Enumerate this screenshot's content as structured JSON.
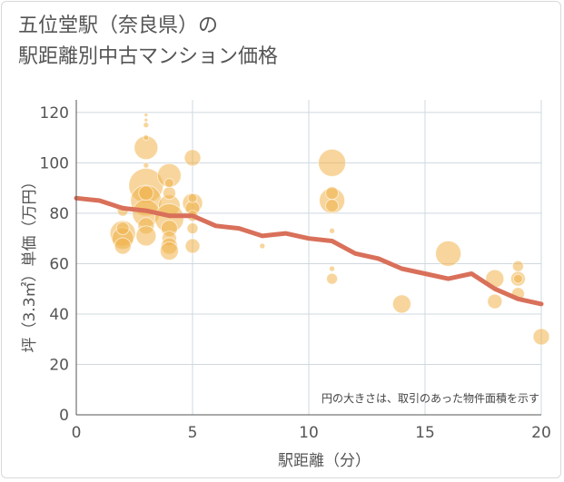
{
  "title": {
    "line1": "五位堂駅（奈良県）の",
    "line2": "駅距離別中古マンション価格"
  },
  "note": "円の大きさは、取引のあった物件面積を示す",
  "colors": {
    "bubble": "#f0b24a",
    "line": "#d9705a",
    "grid": "#cfd8e0",
    "axis": "#555555"
  },
  "chart_data": {
    "type": "scatter",
    "title": "五位堂駅（奈良県）の駅距離別中古マンション価格",
    "xlabel": "駅距離（分）",
    "ylabel": "坪（3.3㎡）単価（万円）",
    "xlim": [
      0,
      20
    ],
    "ylim": [
      0,
      125
    ],
    "xticks": [
      0,
      5,
      10,
      15,
      20
    ],
    "yticks": [
      0,
      20,
      40,
      60,
      80,
      100,
      120
    ],
    "grid": true,
    "annotation": "円の大きさは、取引のあった物件面積を示す",
    "series": [
      {
        "kind": "line",
        "x": [
          0,
          1,
          2,
          3,
          4,
          5,
          6,
          7,
          8,
          9,
          10,
          11,
          12,
          13,
          14,
          15,
          16,
          17,
          18,
          19,
          20
        ],
        "y": [
          86,
          85,
          82,
          81,
          79,
          79,
          75,
          74,
          71,
          72,
          70,
          69,
          64,
          62,
          58,
          56,
          54,
          56,
          50,
          46,
          44
        ]
      },
      {
        "kind": "bubble",
        "points": [
          {
            "x": 2,
            "y": 72,
            "size": 14
          },
          {
            "x": 2,
            "y": 70,
            "size": 12
          },
          {
            "x": 2,
            "y": 67,
            "size": 9
          },
          {
            "x": 2,
            "y": 81,
            "size": 6
          },
          {
            "x": 2,
            "y": 74,
            "size": 7
          },
          {
            "x": 3,
            "y": 106,
            "size": 13
          },
          {
            "x": 3,
            "y": 91,
            "size": 19
          },
          {
            "x": 3,
            "y": 85,
            "size": 17
          },
          {
            "x": 3,
            "y": 80,
            "size": 15
          },
          {
            "x": 3,
            "y": 75,
            "size": 9
          },
          {
            "x": 3,
            "y": 71,
            "size": 11
          },
          {
            "x": 3,
            "y": 110,
            "size": 3
          },
          {
            "x": 3,
            "y": 115,
            "size": 3
          },
          {
            "x": 3,
            "y": 119,
            "size": 2
          },
          {
            "x": 3,
            "y": 117,
            "size": 2
          },
          {
            "x": 3,
            "y": 99,
            "size": 3
          },
          {
            "x": 3,
            "y": 88,
            "size": 8
          },
          {
            "x": 4,
            "y": 95,
            "size": 13
          },
          {
            "x": 4,
            "y": 83,
            "size": 12
          },
          {
            "x": 4,
            "y": 78,
            "size": 16
          },
          {
            "x": 4,
            "y": 74,
            "size": 9
          },
          {
            "x": 4,
            "y": 70,
            "size": 8
          },
          {
            "x": 4,
            "y": 67,
            "size": 9
          },
          {
            "x": 4,
            "y": 65,
            "size": 10
          },
          {
            "x": 4,
            "y": 88,
            "size": 7
          },
          {
            "x": 4,
            "y": 92,
            "size": 5
          },
          {
            "x": 5,
            "y": 102,
            "size": 9
          },
          {
            "x": 5,
            "y": 84,
            "size": 11
          },
          {
            "x": 5,
            "y": 82,
            "size": 8
          },
          {
            "x": 5,
            "y": 79,
            "size": 6
          },
          {
            "x": 5,
            "y": 74,
            "size": 6
          },
          {
            "x": 5,
            "y": 67,
            "size": 8
          },
          {
            "x": 5,
            "y": 86,
            "size": 5
          },
          {
            "x": 8,
            "y": 67,
            "size": 3
          },
          {
            "x": 11,
            "y": 100,
            "size": 15
          },
          {
            "x": 11,
            "y": 85,
            "size": 14
          },
          {
            "x": 11,
            "y": 88,
            "size": 7
          },
          {
            "x": 11,
            "y": 83,
            "size": 7
          },
          {
            "x": 11,
            "y": 73,
            "size": 3
          },
          {
            "x": 11,
            "y": 58,
            "size": 3
          },
          {
            "x": 11,
            "y": 54,
            "size": 6
          },
          {
            "x": 14,
            "y": 44,
            "size": 10
          },
          {
            "x": 16,
            "y": 64,
            "size": 14
          },
          {
            "x": 18,
            "y": 54,
            "size": 10
          },
          {
            "x": 18,
            "y": 45,
            "size": 8
          },
          {
            "x": 19,
            "y": 59,
            "size": 6
          },
          {
            "x": 19,
            "y": 54,
            "size": 8
          },
          {
            "x": 19,
            "y": 54,
            "size": 5
          },
          {
            "x": 19,
            "y": 48,
            "size": 7
          },
          {
            "x": 20,
            "y": 31,
            "size": 9
          }
        ]
      }
    ]
  }
}
